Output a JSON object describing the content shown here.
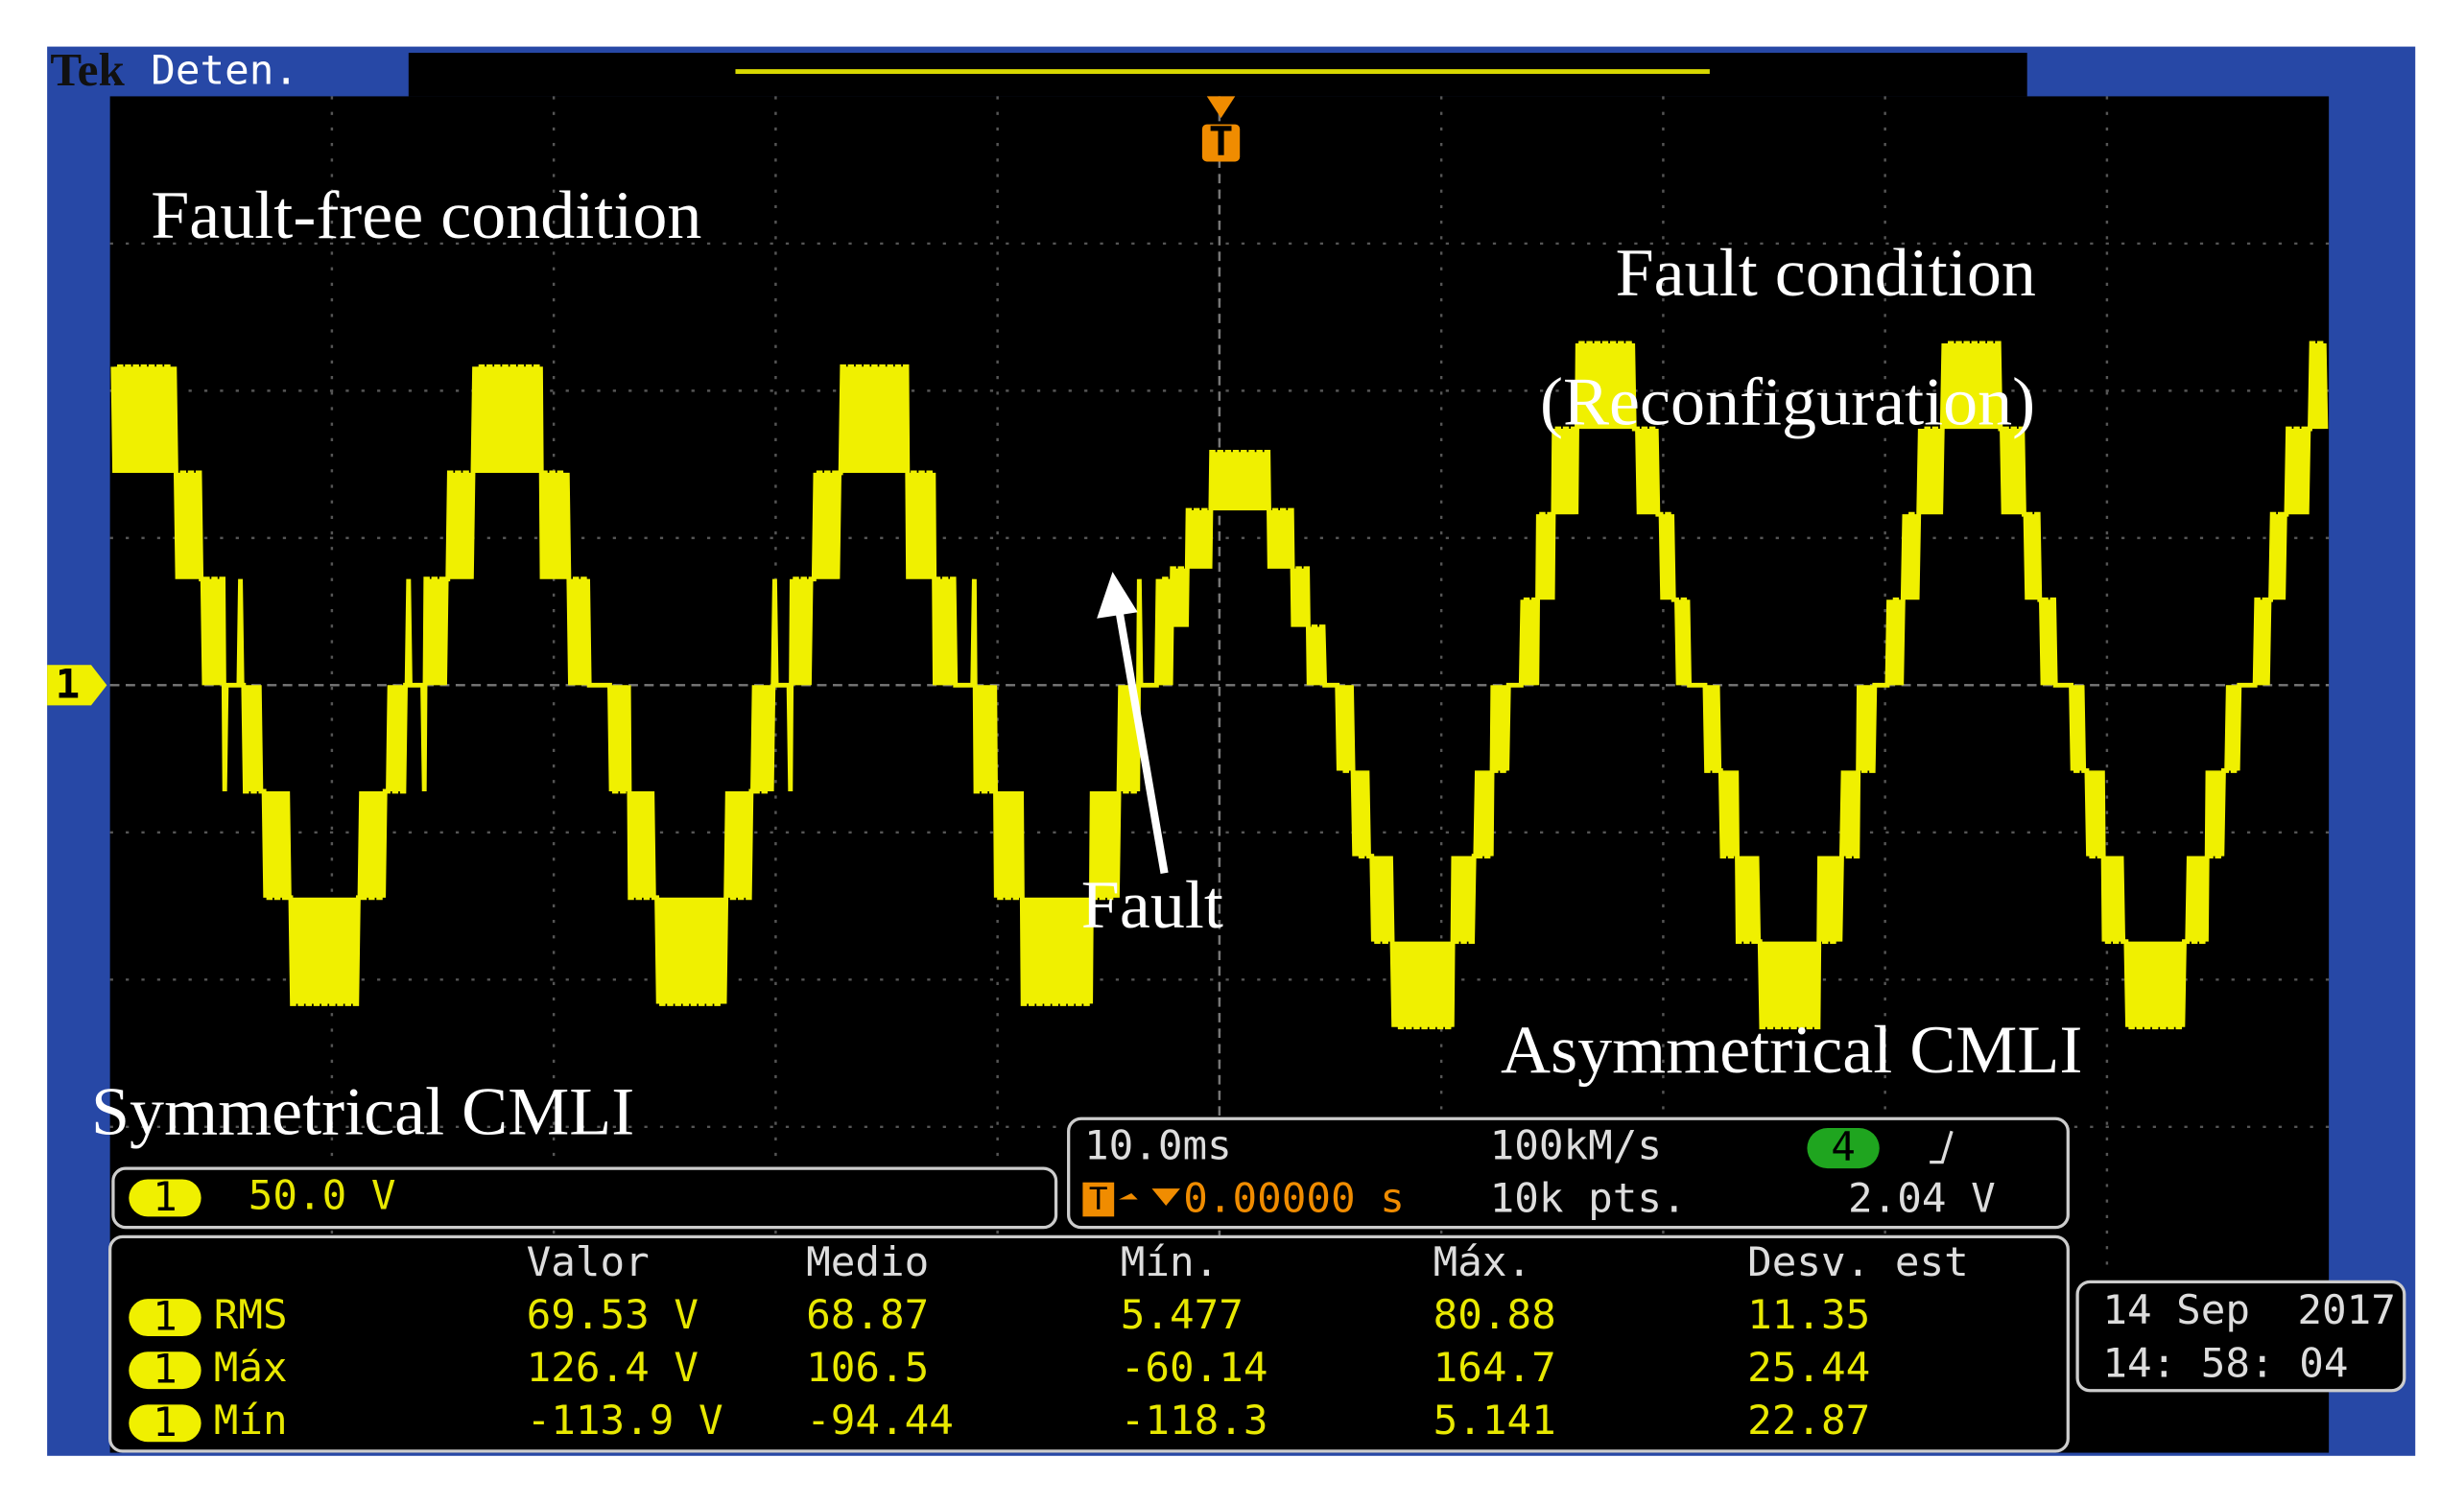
{
  "header": {
    "brand": "Tek",
    "status": "Deten."
  },
  "markers": {
    "channel": "1",
    "trigger": "T"
  },
  "annotations": {
    "fault_free": "Fault-free condition",
    "fault_condition": "Fault condition",
    "reconfiguration": "(Reconfiguration)",
    "fault": "Fault",
    "symmetrical": "Symmetrical CMLI",
    "asymmetrical": "Asymmetrical CMLI"
  },
  "channel_scale": {
    "channel": "1",
    "volts_per_div": "50.0 V"
  },
  "acquisition": {
    "time_per_div": "10.0ms",
    "trigger_position": "0.00000 s",
    "sample_rate": "100kM/s",
    "record_length": "10k pts.",
    "trigger_source": "4",
    "trigger_level": "2.04 V"
  },
  "measurements": {
    "columns": [
      "Valor",
      "Medio",
      "Mín.",
      "Máx.",
      "Desv. est"
    ],
    "rows": [
      {
        "channel": "1",
        "label": "RMS",
        "cells": [
          "69.53 V",
          "68.87",
          "5.477",
          "80.88",
          "11.35"
        ]
      },
      {
        "channel": "1",
        "label": "Máx",
        "cells": [
          "126.4 V",
          "106.5",
          "-60.14",
          "164.7",
          "25.44"
        ]
      },
      {
        "channel": "1",
        "label": "Mín",
        "cells": [
          "-113.9 V",
          "-94.44",
          "-118.3",
          "5.141",
          "22.87"
        ]
      }
    ]
  },
  "datetime": {
    "date": "14 Sep",
    "year": "2017",
    "time": "14: 58: 04"
  }
}
